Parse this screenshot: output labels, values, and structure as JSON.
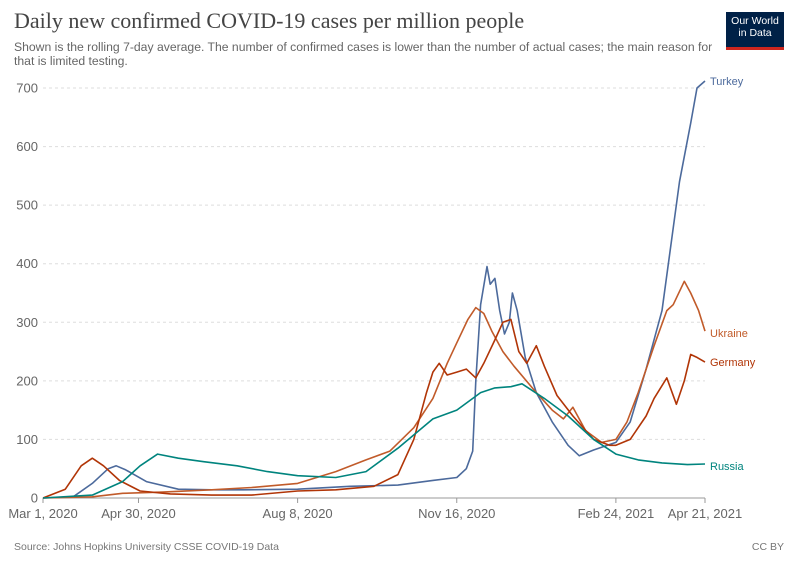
{
  "header": {
    "title": "Daily new confirmed COVID-19 cases per million people",
    "subtitle": "Shown is the rolling 7-day average. The number of confirmed cases is lower than the number of actual cases; the main reason for that is limited testing."
  },
  "logo": {
    "line1": "Our World",
    "line2": "in Data",
    "bg": "#002147",
    "accent": "#ce261e"
  },
  "footer": {
    "source": "Source: Johns Hopkins University CSSE COVID-19 Data",
    "license": "CC BY"
  },
  "chart_data": {
    "type": "line",
    "title": "Daily new confirmed COVID-19 cases per million people",
    "xlabel": "",
    "ylabel": "",
    "ylim": [
      0,
      700
    ],
    "yticks": [
      "0",
      "100",
      "200",
      "300",
      "400",
      "500",
      "600",
      "700"
    ],
    "xticks": [
      "Mar 1, 2020",
      "Apr 30, 2020",
      "Aug 8, 2020",
      "Nov 16, 2020",
      "Feb 24, 2021",
      "Apr 21, 2021"
    ],
    "x_range": [
      "Mar 1, 2020",
      "Apr 21, 2021"
    ],
    "grid": "horizontal dashed",
    "legend": "labels at line ends",
    "series": [
      {
        "name": "Turkey",
        "color": "#4c6a9c",
        "points": [
          [
            "Mar 1, 2020",
            0
          ],
          [
            "Mar 20, 2020",
            2
          ],
          [
            "Apr 1, 2020",
            25
          ],
          [
            "Apr 11, 2020",
            50
          ],
          [
            "Apr 16, 2020",
            55
          ],
          [
            "Apr 22, 2020",
            48
          ],
          [
            "May 5, 2020",
            28
          ],
          [
            "May 25, 2020",
            15
          ],
          [
            "Jun 15, 2020",
            14
          ],
          [
            "Jul 5, 2020",
            14
          ],
          [
            "Aug 8, 2020",
            15
          ],
          [
            "Sep 10, 2020",
            20
          ],
          [
            "Oct 10, 2020",
            22
          ],
          [
            "Nov 1, 2020",
            30
          ],
          [
            "Nov 16, 2020",
            35
          ],
          [
            "Nov 22, 2020",
            50
          ],
          [
            "Nov 26, 2020",
            80
          ],
          [
            "Nov 28, 2020",
            200
          ],
          [
            "Dec 1, 2020",
            330
          ],
          [
            "Dec 5, 2020",
            395
          ],
          [
            "Dec 7, 2020",
            365
          ],
          [
            "Dec 10, 2020",
            375
          ],
          [
            "Dec 13, 2020",
            320
          ],
          [
            "Dec 16, 2020",
            280
          ],
          [
            "Dec 19, 2020",
            300
          ],
          [
            "Dec 21, 2020",
            350
          ],
          [
            "Dec 24, 2020",
            320
          ],
          [
            "Dec 29, 2020",
            240
          ],
          [
            "Jan 5, 2021",
            180
          ],
          [
            "Jan 15, 2021",
            130
          ],
          [
            "Jan 25, 2021",
            90
          ],
          [
            "Feb 1, 2021",
            72
          ],
          [
            "Feb 10, 2021",
            82
          ],
          [
            "Feb 24, 2021",
            95
          ],
          [
            "Mar 5, 2021",
            130
          ],
          [
            "Mar 15, 2021",
            220
          ],
          [
            "Mar 25, 2021",
            320
          ],
          [
            "Apr 5, 2021",
            540
          ],
          [
            "Apr 12, 2021",
            640
          ],
          [
            "Apr 16, 2021",
            700
          ],
          [
            "Apr 21, 2021",
            712
          ]
        ]
      },
      {
        "name": "Ukraine",
        "color": "#c15b2a",
        "points": [
          [
            "Mar 1, 2020",
            0
          ],
          [
            "Apr 1, 2020",
            2
          ],
          [
            "Apr 20, 2020",
            8
          ],
          [
            "May 15, 2020",
            10
          ],
          [
            "Jun 15, 2020",
            14
          ],
          [
            "Jul 10, 2020",
            18
          ],
          [
            "Aug 8, 2020",
            25
          ],
          [
            "Sep 1, 2020",
            45
          ],
          [
            "Sep 20, 2020",
            65
          ],
          [
            "Oct 5, 2020",
            80
          ],
          [
            "Oct 20, 2020",
            120
          ],
          [
            "Nov 1, 2020",
            170
          ],
          [
            "Nov 10, 2020",
            230
          ],
          [
            "Nov 16, 2020",
            265
          ],
          [
            "Nov 23, 2020",
            305
          ],
          [
            "Nov 28, 2020",
            325
          ],
          [
            "Dec 3, 2020",
            315
          ],
          [
            "Dec 8, 2020",
            285
          ],
          [
            "Dec 15, 2020",
            250
          ],
          [
            "Dec 22, 2020",
            225
          ],
          [
            "Jan 5, 2021",
            180
          ],
          [
            "Jan 15, 2021",
            150
          ],
          [
            "Jan 22, 2021",
            135
          ],
          [
            "Jan 28, 2021",
            155
          ],
          [
            "Feb 5, 2021",
            115
          ],
          [
            "Feb 15, 2021",
            95
          ],
          [
            "Feb 24, 2021",
            100
          ],
          [
            "Mar 3, 2021",
            130
          ],
          [
            "Mar 10, 2021",
            180
          ],
          [
            "Mar 20, 2021",
            260
          ],
          [
            "Mar 28, 2021",
            320
          ],
          [
            "Apr 1, 2021",
            330
          ],
          [
            "Apr 8, 2021",
            370
          ],
          [
            "Apr 12, 2021",
            350
          ],
          [
            "Apr 17, 2021",
            320
          ],
          [
            "Apr 21, 2021",
            285
          ]
        ]
      },
      {
        "name": "Germany",
        "color": "#b13507",
        "points": [
          [
            "Mar 1, 2020",
            0
          ],
          [
            "Mar 15, 2020",
            15
          ],
          [
            "Mar 25, 2020",
            55
          ],
          [
            "Apr 1, 2020",
            68
          ],
          [
            "Apr 8, 2020",
            55
          ],
          [
            "Apr 18, 2020",
            30
          ],
          [
            "May 1, 2020",
            12
          ],
          [
            "May 20, 2020",
            7
          ],
          [
            "Jun 15, 2020",
            5
          ],
          [
            "Jul 10, 2020",
            5
          ],
          [
            "Aug 8, 2020",
            12
          ],
          [
            "Sep 1, 2020",
            14
          ],
          [
            "Sep 25, 2020",
            20
          ],
          [
            "Oct 10, 2020",
            40
          ],
          [
            "Oct 20, 2020",
            100
          ],
          [
            "Oct 28, 2020",
            180
          ],
          [
            "Nov 1, 2020",
            215
          ],
          [
            "Nov 5, 2020",
            230
          ],
          [
            "Nov 10, 2020",
            210
          ],
          [
            "Nov 16, 2020",
            215
          ],
          [
            "Nov 22, 2020",
            220
          ],
          [
            "Nov 28, 2020",
            205
          ],
          [
            "Dec 3, 2020",
            230
          ],
          [
            "Dec 10, 2020",
            270
          ],
          [
            "Dec 15, 2020",
            300
          ],
          [
            "Dec 20, 2020",
            305
          ],
          [
            "Dec 25, 2020",
            250
          ],
          [
            "Dec 30, 2020",
            230
          ],
          [
            "Jan 5, 2021",
            260
          ],
          [
            "Jan 10, 2021",
            225
          ],
          [
            "Jan 18, 2021",
            175
          ],
          [
            "Jan 28, 2021",
            140
          ],
          [
            "Feb 10, 2021",
            100
          ],
          [
            "Feb 20, 2021",
            90
          ],
          [
            "Feb 24, 2021",
            90
          ],
          [
            "Mar 5, 2021",
            100
          ],
          [
            "Mar 15, 2021",
            140
          ],
          [
            "Mar 20, 2021",
            170
          ],
          [
            "Mar 28, 2021",
            205
          ],
          [
            "Apr 3, 2021",
            160
          ],
          [
            "Apr 8, 2021",
            200
          ],
          [
            "Apr 12, 2021",
            245
          ],
          [
            "Apr 16, 2021",
            240
          ],
          [
            "Apr 21, 2021",
            232
          ]
        ]
      },
      {
        "name": "Russia",
        "color": "#00847e",
        "points": [
          [
            "Mar 1, 2020",
            0
          ],
          [
            "Apr 1, 2020",
            5
          ],
          [
            "Apr 20, 2020",
            28
          ],
          [
            "May 1, 2020",
            55
          ],
          [
            "May 12, 2020",
            75
          ],
          [
            "May 25, 2020",
            68
          ],
          [
            "Jun 10, 2020",
            62
          ],
          [
            "Jul 1, 2020",
            55
          ],
          [
            "Jul 20, 2020",
            45
          ],
          [
            "Aug 8, 2020",
            38
          ],
          [
            "Sep 1, 2020",
            35
          ],
          [
            "Sep 20, 2020",
            45
          ],
          [
            "Oct 10, 2020",
            85
          ],
          [
            "Nov 1, 2020",
            135
          ],
          [
            "Nov 16, 2020",
            150
          ],
          [
            "Dec 1, 2020",
            180
          ],
          [
            "Dec 10, 2020",
            188
          ],
          [
            "Dec 20, 2020",
            190
          ],
          [
            "Dec 27, 2020",
            195
          ],
          [
            "Jan 10, 2021",
            170
          ],
          [
            "Jan 25, 2021",
            140
          ],
          [
            "Feb 10, 2021",
            100
          ],
          [
            "Feb 24, 2021",
            75
          ],
          [
            "Mar 10, 2021",
            65
          ],
          [
            "Mar 25, 2021",
            60
          ],
          [
            "Apr 10, 2021",
            57
          ],
          [
            "Apr 21, 2021",
            58
          ]
        ]
      }
    ]
  }
}
